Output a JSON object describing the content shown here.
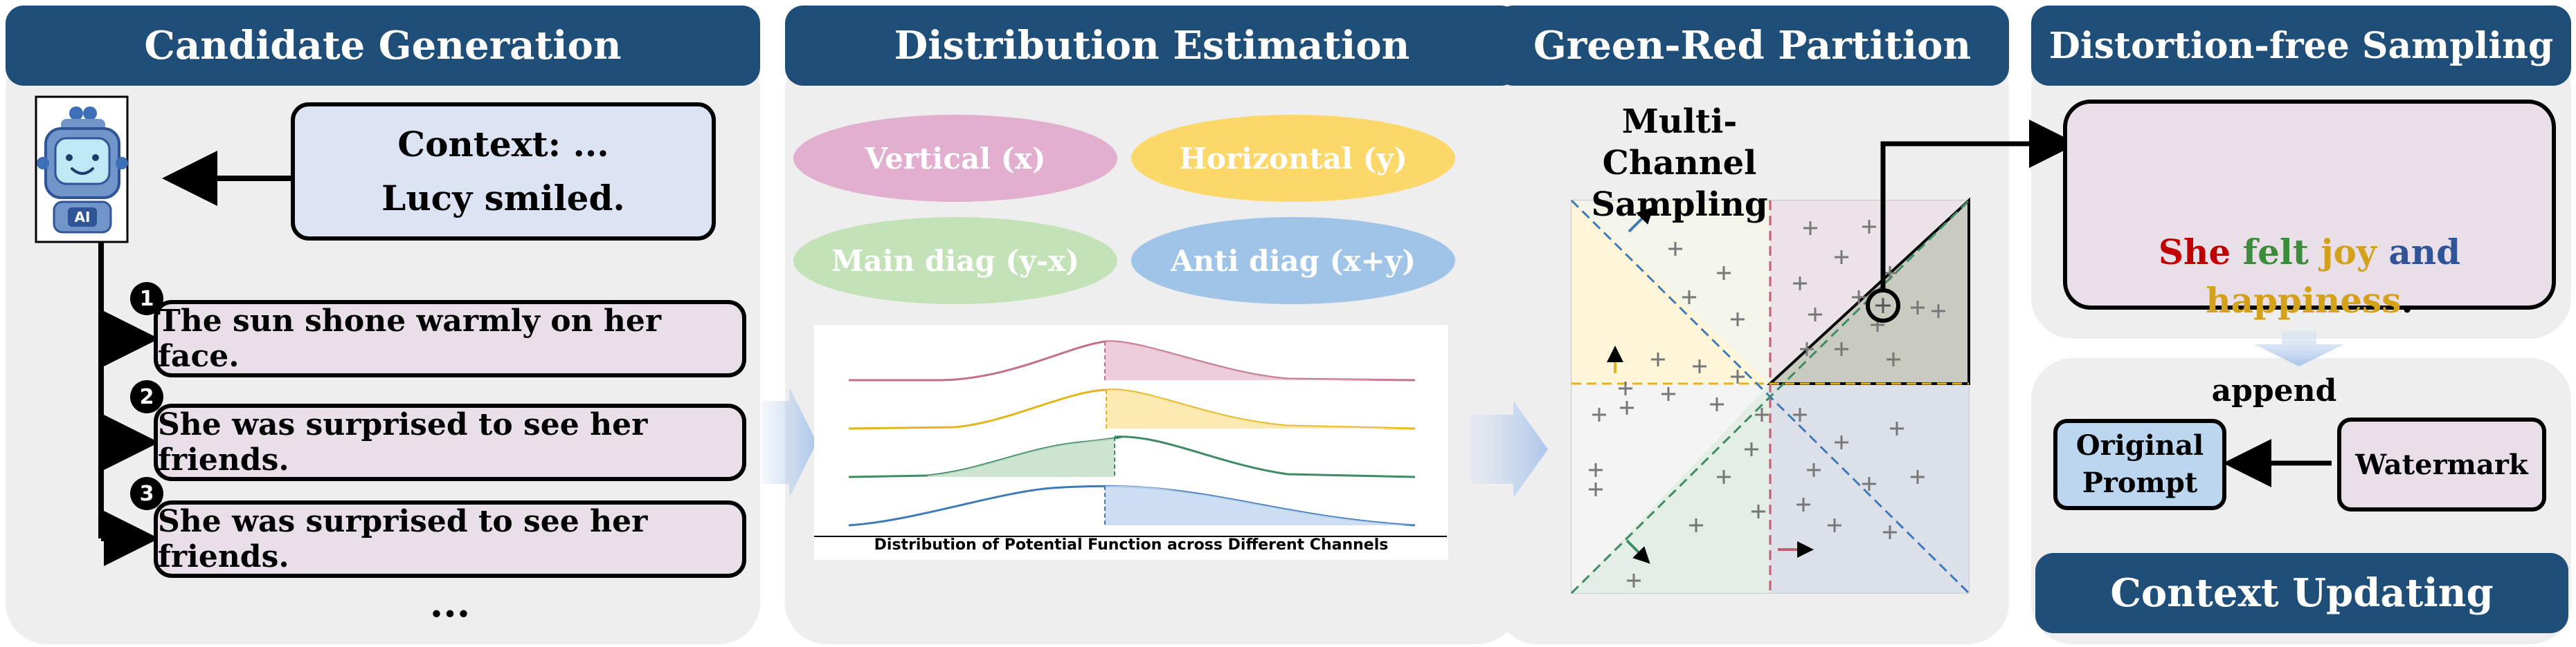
{
  "stages": {
    "candidate": {
      "title": "Candidate Generation"
    },
    "distribution": {
      "title": "Distribution Estimation"
    },
    "partition": {
      "title": "Green-Red Partition"
    },
    "sampling": {
      "title": "Distortion-free Sampling"
    },
    "context": {
      "title": "Context Updating"
    }
  },
  "robot": {
    "badge": "AI"
  },
  "context_box": {
    "line1": "Context: ...",
    "line2": "Lucy smiled."
  },
  "candidates": [
    {
      "num": "1",
      "text": "The sun shone warmly on her face."
    },
    {
      "num": "2",
      "text": "She was surprised to see her friends."
    },
    {
      "num": "3",
      "text": "She was surprised to see her friends."
    }
  ],
  "ellipsis": "...",
  "channels": [
    {
      "label": "Vertical (x)",
      "color": "#e3afcf"
    },
    {
      "label": "Horizontal (y)",
      "color": "#fcd86a"
    },
    {
      "label": "Main diag (y-x)",
      "color": "#c3e2b7"
    },
    {
      "label": "Anti diag (x+y)",
      "color": "#9fc4e8"
    }
  ],
  "distribution_caption": "Distribution of Potential Function across Different Channels",
  "partition_title": {
    "line1": "Multi-Channel",
    "line2": "Sampling"
  },
  "sample_colors": [
    "#c65b72",
    "#e8b418",
    "#3e8a63",
    "#3f7ab8"
  ],
  "output_words": [
    {
      "text": "She",
      "color": "#c00000"
    },
    {
      "text": "felt",
      "color": "#3c8c3c"
    },
    {
      "text": "joy",
      "color": "#d4a21a"
    },
    {
      "text": "and",
      "color": "#2f5597"
    },
    {
      "text": "happiness",
      "color": "#d4a21a"
    },
    {
      "text": ".",
      "color": "#000000"
    }
  ],
  "append_label": "append",
  "original_prompt": {
    "line1": "Original",
    "line2": "Prompt"
  },
  "watermark_label": "Watermark"
}
